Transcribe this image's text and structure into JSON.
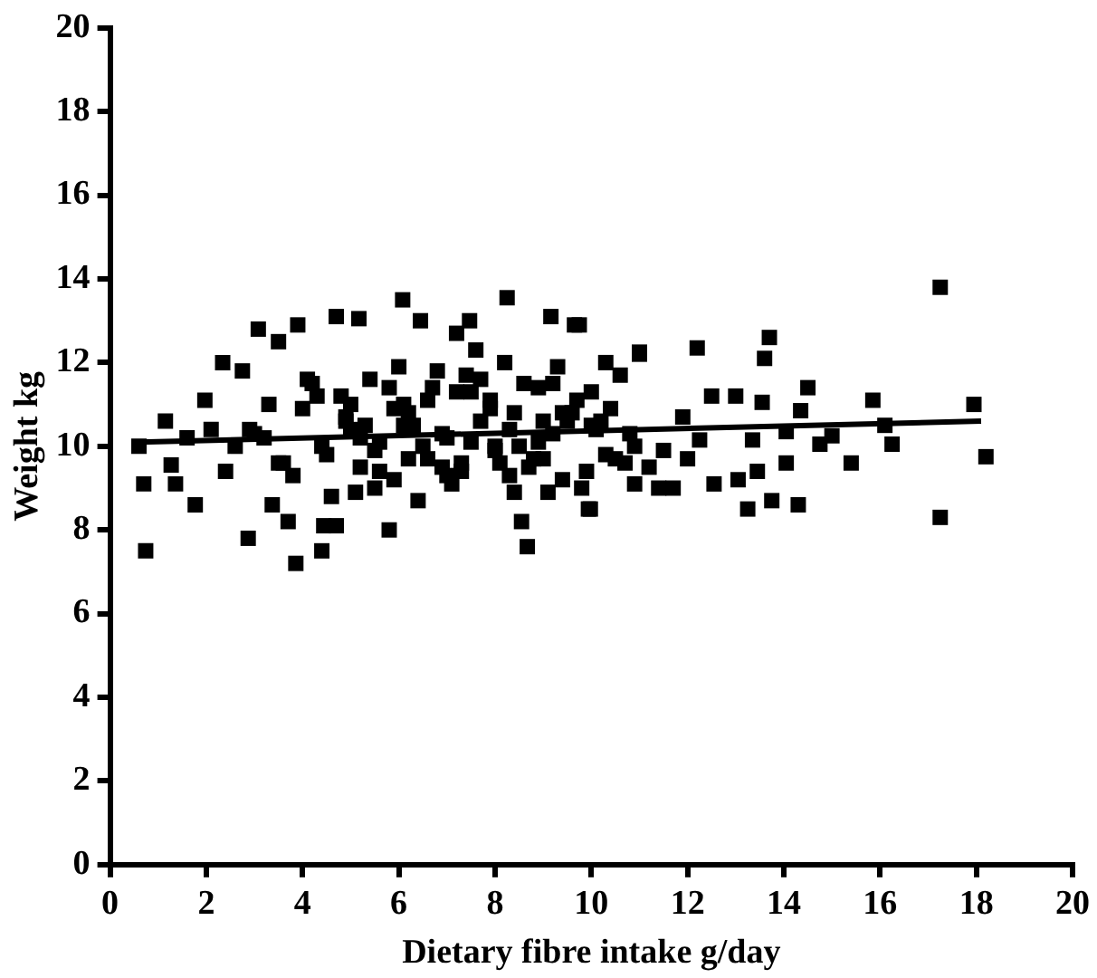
{
  "chart_data": {
    "type": "scatter",
    "xlabel": "Dietary fibre intake g/day",
    "ylabel": "Weight kg",
    "xlim": [
      0,
      20
    ],
    "ylim": [
      0,
      20
    ],
    "xticks": [
      0,
      2,
      4,
      6,
      8,
      10,
      12,
      14,
      16,
      18,
      20
    ],
    "yticks": [
      0,
      2,
      4,
      6,
      8,
      10,
      12,
      14,
      16,
      18,
      20
    ],
    "grid": false,
    "legend": false,
    "series": [
      {
        "color": "#000000",
        "marker": "square",
        "x": [
          0.74,
          0.7,
          0.6,
          1.77,
          1.36,
          1.27,
          2.4,
          2.87,
          3.86,
          4.4,
          3.37,
          3.7,
          4.7,
          5.8,
          8.55,
          8.67,
          9.94,
          3.08,
          3.9,
          4.7,
          5.17,
          6.08,
          6.45,
          7.47,
          8.25,
          9.16,
          9.65,
          7.2,
          2.34,
          2.75,
          3.5,
          1.97,
          1.15,
          4.44,
          17.25,
          12.2,
          13.7,
          13.6,
          13.55,
          15.85,
          17.95,
          18.2,
          17.25,
          15.4,
          16.25,
          16.1,
          14.05,
          14.3,
          13.75,
          13.25,
          13.45,
          13.05,
          12.55,
          13.35,
          14.05,
          14.75,
          15.0,
          14.5,
          14.35,
          9.98,
          12.25,
          11.9,
          12.5,
          13.0,
          11.7,
          11.4,
          10.9,
          11.0,
          10.3,
          9.75,
          1.6,
          2.1,
          2.6,
          3.0,
          3.3,
          3.6,
          4.0,
          4.2,
          4.5,
          4.8,
          5.0,
          5.2,
          5.4,
          5.6,
          5.9,
          6.1,
          6.3,
          6.6,
          6.8,
          7.0,
          7.3,
          7.5,
          7.7,
          8.0,
          8.2,
          8.4,
          8.7,
          8.9,
          9.2,
          9.4,
          9.7,
          10.0,
          10.3,
          10.6,
          10.9,
          11.2,
          3.2,
          3.8,
          4.3,
          4.9,
          5.5,
          6.0,
          6.5,
          7.1,
          7.6,
          8.1,
          8.6,
          9.1,
          9.6,
          10.1,
          10.5,
          11.0,
          4.1,
          4.6,
          5.3,
          5.8,
          6.4,
          6.9,
          7.4,
          7.9,
          8.4,
          8.9,
          9.3,
          9.8,
          10.2,
          5.1,
          6.2,
          7.2,
          8.3,
          9.0,
          2.9,
          3.5,
          11.5,
          12.0,
          4.4,
          4.9,
          5.2,
          5.6,
          5.9,
          6.2,
          6.6,
          6.9,
          7.3,
          7.7,
          8.0,
          8.3,
          8.8,
          9.2,
          9.5,
          9.9,
          10.4,
          10.8,
          5.0,
          5.5,
          6.1,
          6.7,
          7.0,
          7.5,
          7.9,
          8.5,
          9.0,
          9.4,
          10.0,
          10.7
        ],
        "values": [
          7.5,
          9.1,
          10.0,
          8.6,
          9.1,
          9.55,
          9.4,
          7.8,
          7.2,
          7.5,
          8.6,
          8.2,
          8.1,
          8.0,
          8.2,
          7.6,
          8.5,
          12.8,
          12.9,
          13.1,
          13.05,
          13.5,
          13.0,
          13.0,
          13.55,
          13.1,
          12.9,
          12.7,
          12.0,
          11.8,
          12.5,
          11.1,
          10.6,
          8.1,
          13.8,
          12.35,
          12.6,
          12.1,
          11.05,
          11.1,
          11.0,
          9.75,
          8.3,
          9.6,
          10.05,
          10.5,
          9.6,
          8.6,
          8.7,
          8.5,
          9.4,
          9.2,
          9.1,
          10.15,
          10.35,
          10.05,
          10.25,
          11.4,
          10.85,
          8.5,
          10.15,
          10.7,
          11.2,
          11.2,
          9.0,
          9.0,
          9.1,
          12.25,
          12.0,
          12.9,
          10.2,
          10.4,
          10.0,
          10.3,
          11.0,
          9.6,
          10.9,
          11.5,
          9.8,
          11.2,
          10.4,
          9.5,
          11.6,
          10.1,
          9.2,
          11.0,
          10.5,
          9.7,
          11.8,
          10.2,
          9.4,
          11.3,
          10.6,
          9.9,
          12.0,
          10.8,
          9.5,
          11.4,
          10.3,
          9.2,
          11.1,
          10.5,
          9.8,
          11.7,
          10.0,
          9.5,
          10.2,
          9.3,
          11.2,
          10.7,
          9.0,
          11.9,
          10.0,
          9.1,
          12.3,
          9.6,
          11.5,
          8.9,
          10.8,
          10.4,
          9.7,
          12.2,
          11.6,
          8.8,
          10.5,
          11.4,
          8.7,
          9.5,
          11.7,
          10.9,
          8.9,
          10.1,
          11.9,
          9.0,
          10.6,
          8.9,
          10.8,
          11.3,
          9.3,
          10.6,
          10.4,
          9.6,
          9.9,
          9.7,
          10.0,
          10.6,
          10.2,
          9.4,
          10.9,
          9.7,
          11.1,
          10.3,
          9.6,
          11.6,
          10.0,
          10.4,
          9.7,
          11.5,
          10.6,
          9.4,
          10.9,
          10.3,
          11.0,
          9.9,
          10.5,
          11.4,
          9.3,
          10.1,
          11.1,
          10.0,
          9.7,
          10.8,
          11.3,
          9.6
        ]
      },
      {
        "type": "line",
        "color": "#000000",
        "marker": "none",
        "x": [
          0.6,
          18.1
        ],
        "values": [
          10.1,
          10.6
        ]
      }
    ]
  }
}
